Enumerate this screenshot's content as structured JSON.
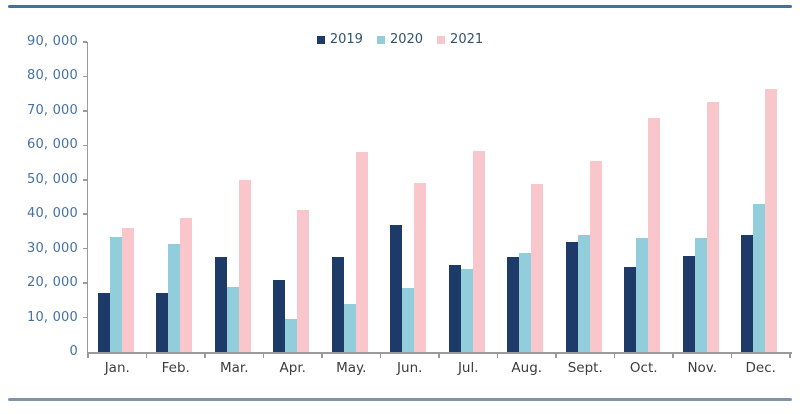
{
  "page": {
    "background": "#ffffff",
    "top_rule_color": "#41719c",
    "bottom_rule_color": "#7f95a5"
  },
  "chart_data": {
    "type": "bar",
    "title": "",
    "xlabel": "",
    "ylabel": "",
    "categories": [
      "Jan.",
      "Feb.",
      "Mar.",
      "Apr.",
      "May.",
      "Jun.",
      "Jul.",
      "Aug.",
      "Sept.",
      "Oct.",
      "Nov.",
      "Dec."
    ],
    "series": [
      {
        "name": "2019",
        "color": "#1e3a68",
        "values": [
          17000,
          17200,
          27500,
          21000,
          27500,
          37000,
          25200,
          27500,
          32000,
          24700,
          28000,
          34000
        ]
      },
      {
        "name": "2020",
        "color": "#92cddc",
        "values": [
          33500,
          31500,
          19000,
          9500,
          14000,
          18600,
          24000,
          28800,
          34000,
          33000,
          33000,
          43000
        ]
      },
      {
        "name": "2021",
        "color": "#f9c6cb",
        "values": [
          36000,
          39000,
          50000,
          41200,
          58000,
          49000,
          58300,
          48700,
          55500,
          68000,
          72500,
          76400
        ]
      }
    ],
    "ylim": [
      0,
      90000
    ],
    "ytick_step": 10000,
    "ytick_labels": [
      "0",
      "10, 000",
      "20, 000",
      "30, 000",
      "40, 000",
      "50, 000",
      "60, 000",
      "70, 000",
      "80, 000",
      "90, 000"
    ],
    "grid": false,
    "legend_position": "top-center",
    "axis_color": "#9b9b9b",
    "ylabel_color": "#4472a4",
    "xlabel_color": "#3d3d3d",
    "legend_text_color": "#33516e"
  }
}
